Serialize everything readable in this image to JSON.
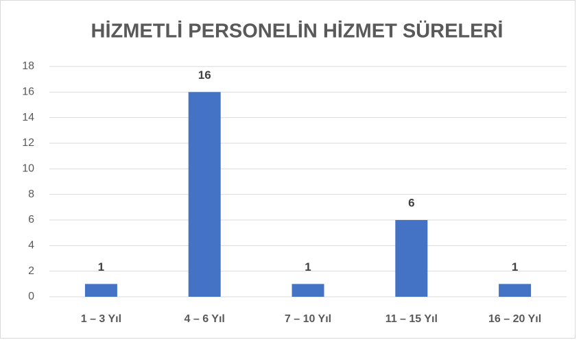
{
  "chart_data": {
    "type": "bar",
    "title": "HİZMETLİ PERSONELİN HİZMET SÜRELERİ",
    "categories": [
      "1 – 3 Yıl",
      "4 – 6 Yıl",
      "7 – 10 Yıl",
      "11 – 15 Yıl",
      "16 – 20 Yıl"
    ],
    "values": [
      1,
      16,
      1,
      6,
      1
    ],
    "color": "#4472c4",
    "ylim": [
      0,
      18
    ],
    "yticks": [
      0,
      2,
      4,
      6,
      8,
      10,
      12,
      14,
      16,
      18
    ],
    "grid": true
  }
}
